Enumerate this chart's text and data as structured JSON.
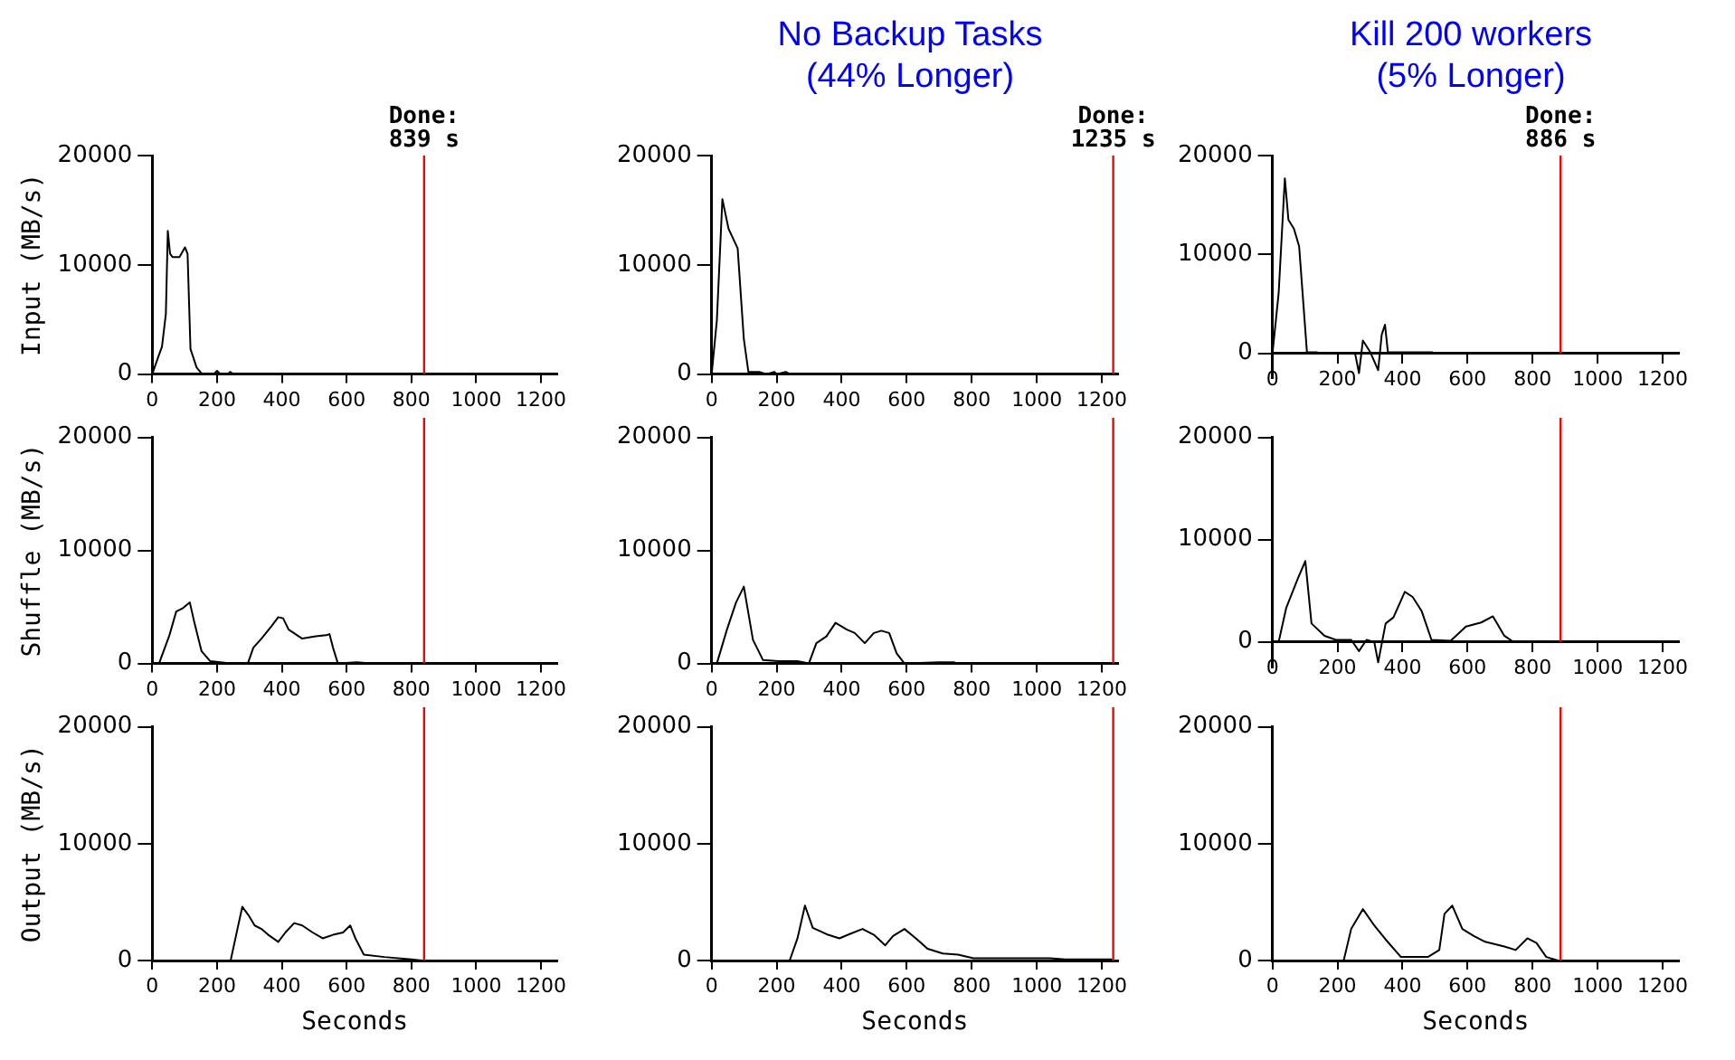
{
  "chart_data": [
    {
      "type": "line",
      "ylabel": "Input (MB/s)",
      "color": "#000000",
      "x": [
        0,
        20,
        30,
        42,
        48,
        55,
        63,
        84,
        101,
        109,
        118,
        137,
        154,
        190,
        200,
        210,
        235,
        240,
        250
      ],
      "values": [
        0,
        1700,
        2500,
        5500,
        13100,
        11000,
        10700,
        10700,
        11600,
        11000,
        2300,
        600,
        0,
        0,
        300,
        0,
        0,
        200,
        0
      ],
      "xlim": [
        0,
        1250
      ],
      "xticks": [
        0,
        200,
        400,
        600,
        800,
        1000,
        1200
      ],
      "ylim": [
        0,
        20000
      ],
      "yticks": [
        0,
        10000,
        20000
      ],
      "ref_lines": [
        {
          "axis": "x",
          "value": 839,
          "color": "#ff0000"
        }
      ],
      "annotations": [
        "Done:\n839 s"
      ]
    },
    {
      "type": "line",
      "title": "No Backup Tasks\n(44% Longer)",
      "color": "#000000",
      "x": [
        0,
        16,
        33,
        52,
        80,
        99,
        113,
        146,
        169,
        193,
        200,
        228,
        240
      ],
      "values": [
        0,
        4900,
        16000,
        13300,
        11500,
        3200,
        200,
        200,
        0,
        200,
        0,
        200,
        0
      ],
      "xlim": [
        0,
        1250
      ],
      "xticks": [
        0,
        200,
        400,
        600,
        800,
        1000,
        1200
      ],
      "ylim": [
        0,
        20000
      ],
      "yticks": [
        0,
        10000,
        20000
      ],
      "ref_lines": [
        {
          "axis": "x",
          "value": 1235,
          "color": "#ff0000"
        }
      ],
      "annotations": [
        "Done:\n1235 s"
      ]
    },
    {
      "type": "line",
      "title": "Kill 200 workers\n(5% Longer)",
      "color": "#000000",
      "x": [
        0,
        19,
        38,
        49,
        66,
        82,
        106,
        136,
        148,
        254,
        266,
        278,
        301,
        325,
        336,
        346,
        355,
        489,
        492
      ],
      "values": [
        0,
        6100,
        17700,
        13500,
        12600,
        10800,
        100,
        100,
        0,
        0,
        -2000,
        1300,
        100,
        -1700,
        1900,
        2900,
        100,
        100,
        0
      ],
      "xlim": [
        0,
        1250
      ],
      "xticks": [
        0,
        200,
        400,
        600,
        800,
        1000,
        1200
      ],
      "ylim": [
        -2500,
        20000
      ],
      "yticks": [
        0,
        10000,
        20000
      ],
      "ref_lines": [
        {
          "axis": "x",
          "value": 886,
          "color": "#ff0000"
        }
      ],
      "annotations": [
        "Done:\n886 s"
      ]
    },
    {
      "type": "line",
      "ylabel": "Shuffle (MB/s)",
      "color": "#000000",
      "x": [
        0,
        21,
        53,
        74,
        95,
        116,
        131,
        152,
        179,
        242,
        295,
        312,
        337,
        368,
        389,
        404,
        421,
        442,
        463,
        505,
        537,
        547,
        558,
        573,
        632,
        674
      ],
      "values": [
        0,
        0,
        2500,
        4600,
        4900,
        5400,
        3500,
        1100,
        200,
        0,
        0,
        1400,
        2200,
        3300,
        4100,
        4000,
        3000,
        2600,
        2200,
        2400,
        2500,
        2600,
        1400,
        0,
        100,
        0
      ],
      "xlim": [
        0,
        1250
      ],
      "xticks": [
        0,
        200,
        400,
        600,
        800,
        1000,
        1200
      ],
      "ylim": [
        0,
        20000
      ],
      "yticks": [
        0,
        10000,
        20000
      ],
      "ref_lines": [
        {
          "axis": "x",
          "value": 839,
          "color": "#ff0000"
        }
      ]
    },
    {
      "type": "line",
      "color": "#000000",
      "x": [
        0,
        16,
        47,
        75,
        99,
        127,
        158,
        205,
        264,
        299,
        322,
        353,
        381,
        416,
        440,
        471,
        499,
        522,
        546,
        569,
        593,
        699,
        746,
        760
      ],
      "values": [
        0,
        0,
        3000,
        5400,
        6800,
        2100,
        300,
        200,
        200,
        0,
        1800,
        2400,
        3600,
        3000,
        2700,
        1800,
        2700,
        2900,
        2700,
        900,
        0,
        100,
        100,
        0
      ],
      "xlim": [
        0,
        1250
      ],
      "xticks": [
        0,
        200,
        400,
        600,
        800,
        1000,
        1200
      ],
      "ylim": [
        0,
        20000
      ],
      "yticks": [
        0,
        10000,
        20000
      ],
      "ref_lines": [
        {
          "axis": "x",
          "value": 1235,
          "color": "#ff0000"
        }
      ]
    },
    {
      "type": "line",
      "color": "#000000",
      "x": [
        0,
        19,
        42,
        78,
        101,
        120,
        160,
        195,
        242,
        266,
        289,
        313,
        325,
        348,
        372,
        407,
        431,
        459,
        489,
        548,
        595,
        642,
        678,
        713,
        741
      ],
      "values": [
        0,
        0,
        3300,
        6200,
        7900,
        1800,
        600,
        200,
        200,
        -900,
        200,
        0,
        -2000,
        1800,
        2400,
        4900,
        4400,
        3000,
        200,
        100,
        1500,
        1900,
        2500,
        600,
        0
      ],
      "xlim": [
        0,
        1250
      ],
      "xticks": [
        0,
        200,
        400,
        600,
        800,
        1000,
        1200
      ],
      "ylim": [
        -2500,
        20000
      ],
      "yticks": [
        0,
        10000,
        20000
      ],
      "ref_lines": [
        {
          "axis": "x",
          "value": 886,
          "color": "#ff0000"
        }
      ]
    },
    {
      "type": "line",
      "ylabel": "Output (MB/s)",
      "xlabel": "Seconds",
      "color": "#000000",
      "x": [
        242,
        263,
        278,
        299,
        316,
        337,
        358,
        389,
        411,
        438,
        463,
        495,
        526,
        558,
        589,
        611,
        627,
        653,
        716,
        800,
        832,
        839
      ],
      "values": [
        0,
        2700,
        4600,
        3800,
        3000,
        2700,
        2200,
        1600,
        2400,
        3200,
        3000,
        2400,
        1900,
        2200,
        2400,
        3000,
        1900,
        500,
        300,
        100,
        0,
        0
      ],
      "xlim": [
        0,
        1250
      ],
      "xticks": [
        0,
        200,
        400,
        600,
        800,
        1000,
        1200
      ],
      "ylim": [
        0,
        20000
      ],
      "yticks": [
        0,
        10000,
        20000
      ],
      "ref_lines": [
        {
          "axis": "x",
          "value": 839,
          "color": "#ff0000"
        }
      ]
    },
    {
      "type": "line",
      "xlabel": "Seconds",
      "color": "#000000",
      "x": [
        240,
        264,
        287,
        311,
        334,
        358,
        393,
        428,
        464,
        499,
        534,
        558,
        593,
        628,
        664,
        711,
        758,
        805,
        993,
        1040,
        1087,
        1228,
        1235
      ],
      "values": [
        0,
        1900,
        4700,
        2800,
        2500,
        2200,
        1900,
        2300,
        2700,
        2200,
        1300,
        2100,
        2700,
        1900,
        1000,
        600,
        500,
        200,
        200,
        200,
        100,
        100,
        0
      ],
      "xlim": [
        0,
        1250
      ],
      "xticks": [
        0,
        200,
        400,
        600,
        800,
        1000,
        1200
      ],
      "ylim": [
        0,
        20000
      ],
      "yticks": [
        0,
        10000,
        20000
      ],
      "ref_lines": [
        {
          "axis": "x",
          "value": 1235,
          "color": "#ff0000"
        }
      ]
    },
    {
      "type": "line",
      "xlabel": "Seconds",
      "color": "#000000",
      "x": [
        219,
        242,
        278,
        313,
        348,
        395,
        478,
        513,
        529,
        553,
        584,
        619,
        654,
        713,
        748,
        784,
        812,
        842,
        878,
        886
      ],
      "values": [
        0,
        2700,
        4400,
        3000,
        1800,
        300,
        300,
        900,
        4000,
        4700,
        2700,
        2100,
        1600,
        1200,
        900,
        1900,
        1500,
        300,
        0,
        0
      ],
      "xlim": [
        0,
        1250
      ],
      "xticks": [
        0,
        200,
        400,
        600,
        800,
        1000,
        1200
      ],
      "ylim": [
        0,
        20000
      ],
      "yticks": [
        0,
        10000,
        20000
      ],
      "ref_lines": [
        {
          "axis": "x",
          "value": 886,
          "color": "#ff0000"
        }
      ]
    }
  ]
}
